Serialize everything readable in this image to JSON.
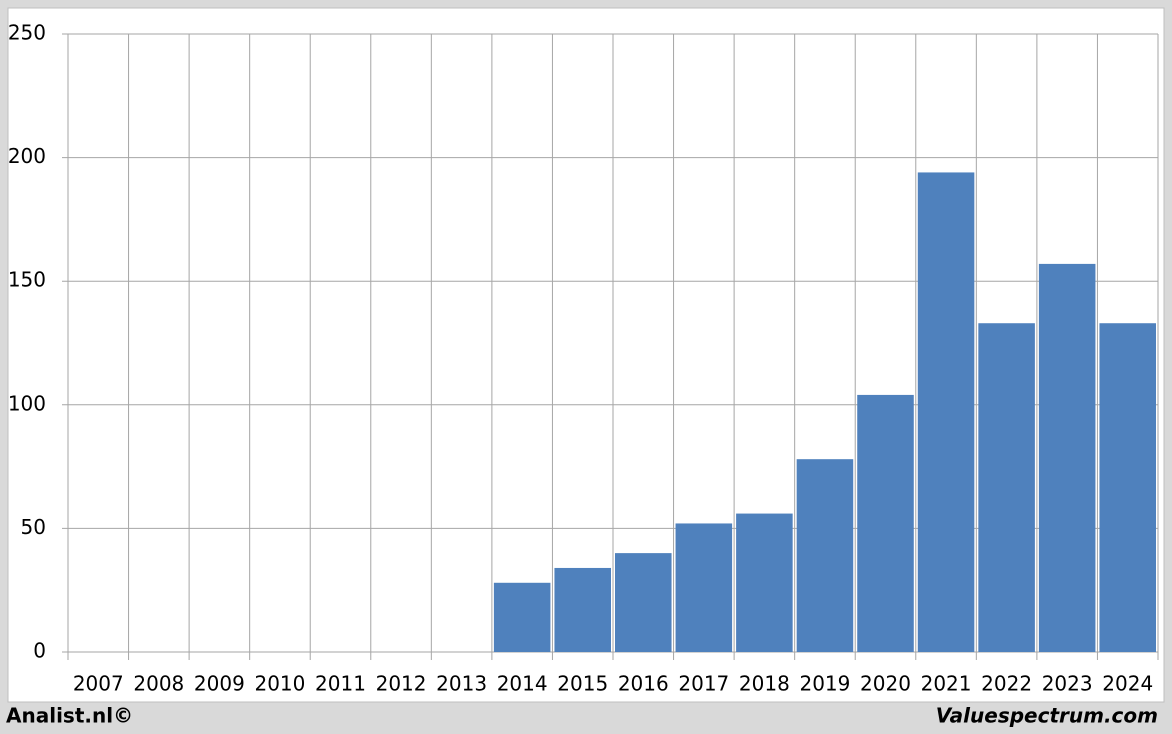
{
  "chart_data": {
    "type": "bar",
    "categories": [
      "2007",
      "2008",
      "2009",
      "2010",
      "2011",
      "2012",
      "2013",
      "2014",
      "2015",
      "2016",
      "2017",
      "2018",
      "2019",
      "2020",
      "2021",
      "2022",
      "2023",
      "2024"
    ],
    "values": [
      null,
      null,
      null,
      null,
      null,
      null,
      null,
      28,
      34,
      40,
      52,
      56,
      78,
      104,
      194,
      133,
      157,
      133
    ],
    "color": "#4f81bd",
    "ylim": [
      0,
      250
    ],
    "yticks": [
      0,
      50,
      100,
      150,
      200,
      250
    ],
    "grid": true
  },
  "footer": {
    "left": "Analist.nl©",
    "right": "Valuespectrum.com"
  }
}
